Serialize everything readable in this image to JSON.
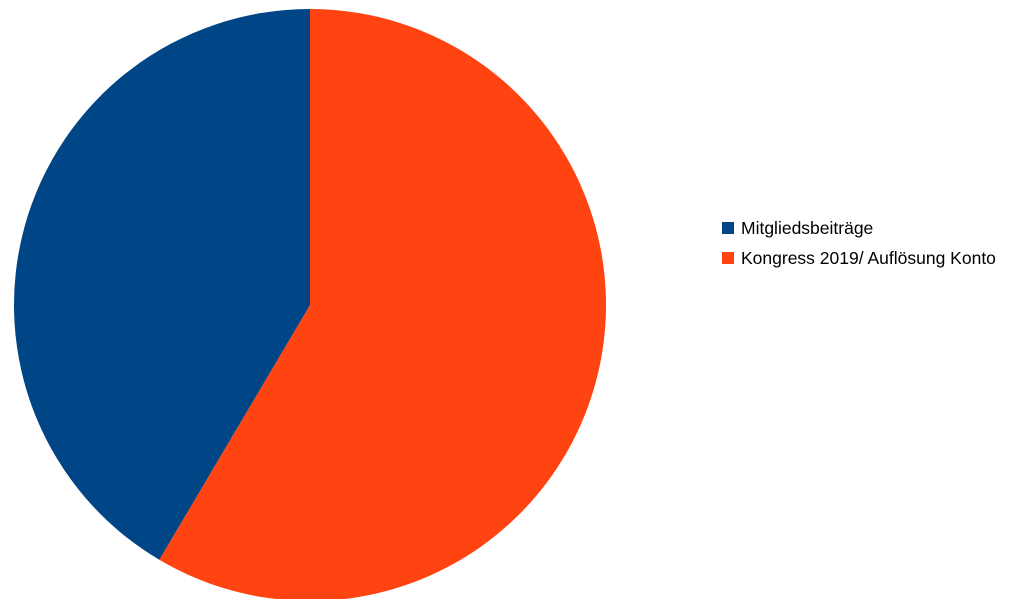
{
  "chart_data": {
    "type": "pie",
    "title": "",
    "start_angle_deg": 0,
    "direction": "clockwise",
    "slices": [
      {
        "label": "Kongress 2019/ Auflösung Konto",
        "value": 58.5,
        "color": "#ff4411"
      },
      {
        "label": "Mitgliedsbeiträge",
        "value": 41.5,
        "color": "#004586"
      }
    ],
    "legend": {
      "position": "right",
      "entries": [
        {
          "label": "Mitgliedsbeiträge",
          "color": "#004586"
        },
        {
          "label": "Kongress 2019/ Auflösung Konto",
          "color": "#ff4411"
        }
      ]
    }
  }
}
